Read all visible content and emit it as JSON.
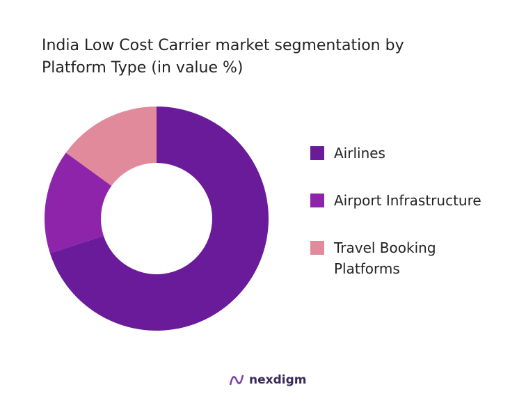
{
  "chart_data": {
    "type": "donut",
    "title": "India Low Cost Carrier market segmentation by Platform Type (in value %)",
    "categories": [
      "Airlines",
      "Airport Infrastructure",
      "Travel Booking Platforms"
    ],
    "values": [
      70,
      15,
      15
    ],
    "colors": [
      "#6a1b9a",
      "#8e24aa",
      "#e08a9c"
    ]
  },
  "footer": {
    "logo": "nexdigm"
  }
}
